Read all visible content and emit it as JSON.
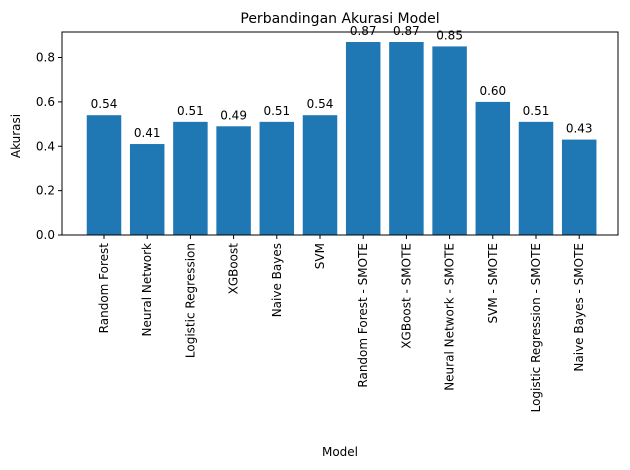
{
  "chart_data": {
    "type": "bar",
    "title": "Perbandingan Akurasi Model",
    "xlabel": "Model",
    "ylabel": "Akurasi",
    "ylim": [
      0,
      0.915
    ],
    "yticks": [
      0.0,
      0.2,
      0.4,
      0.6,
      0.8
    ],
    "ytick_labels": [
      "0.0",
      "0.2",
      "0.4",
      "0.6",
      "0.8"
    ],
    "grid": false,
    "bar_color": "#1f77b4",
    "categories": [
      "Random Forest",
      "Neural Network",
      "Logistic Regression",
      "XGBoost",
      "Naive Bayes",
      "SVM",
      "Random Forest - SMOTE",
      "XGBoost - SMOTE",
      "Neural Network - SMOTE",
      "SVM - SMOTE",
      "Logistic Regression - SMOTE",
      "Naive Bayes - SMOTE"
    ],
    "values": [
      0.54,
      0.41,
      0.51,
      0.49,
      0.51,
      0.54,
      0.87,
      0.87,
      0.85,
      0.6,
      0.51,
      0.43
    ],
    "value_labels": [
      "0.54",
      "0.41",
      "0.51",
      "0.49",
      "0.51",
      "0.54",
      "0.87",
      "0.87",
      "0.85",
      "0.60",
      "0.51",
      "0.43"
    ]
  }
}
